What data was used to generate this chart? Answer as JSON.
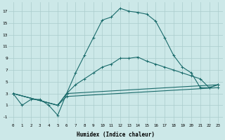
{
  "xlabel": "Humidex (Indice chaleur)",
  "xlim": [
    -0.5,
    23.5
  ],
  "ylim": [
    -2,
    18.5
  ],
  "xticks": [
    0,
    1,
    2,
    3,
    4,
    5,
    6,
    7,
    8,
    9,
    10,
    11,
    12,
    13,
    14,
    15,
    16,
    17,
    18,
    19,
    20,
    21,
    22,
    23
  ],
  "yticks": [
    -1,
    1,
    3,
    5,
    7,
    9,
    11,
    13,
    15,
    17
  ],
  "bg_color": "#cce8e8",
  "grid_color": "#aacccc",
  "line_color": "#1a6b6b",
  "line1_x": [
    0,
    1,
    2,
    3,
    4,
    5,
    6,
    7,
    8,
    9,
    10,
    11,
    12,
    13,
    14,
    15,
    16,
    17,
    18,
    19,
    20,
    21,
    22,
    23
  ],
  "line1_y": [
    3,
    1,
    2,
    2,
    1,
    -0.7,
    3,
    6.5,
    9.5,
    12.5,
    15.5,
    16,
    17.5,
    17,
    16.8,
    16.5,
    15.3,
    12.5,
    9.5,
    7.5,
    6.5,
    4,
    4,
    4.5
  ],
  "line2_x": [
    0,
    5,
    6,
    7,
    8,
    9,
    10,
    11,
    12,
    13,
    14,
    15,
    16,
    17,
    18,
    19,
    20,
    21,
    22,
    23
  ],
  "line2_y": [
    3,
    1,
    3,
    4.5,
    5.5,
    6.5,
    7.5,
    8,
    9,
    9,
    9.2,
    8.5,
    8,
    7.5,
    7,
    6.5,
    6,
    5.5,
    4,
    4.5
  ],
  "line3_x": [
    0,
    5,
    6,
    23
  ],
  "line3_y": [
    3,
    1,
    3,
    4.5
  ],
  "line4_x": [
    0,
    5,
    6,
    23
  ],
  "line4_y": [
    3,
    1,
    2.5,
    4
  ]
}
